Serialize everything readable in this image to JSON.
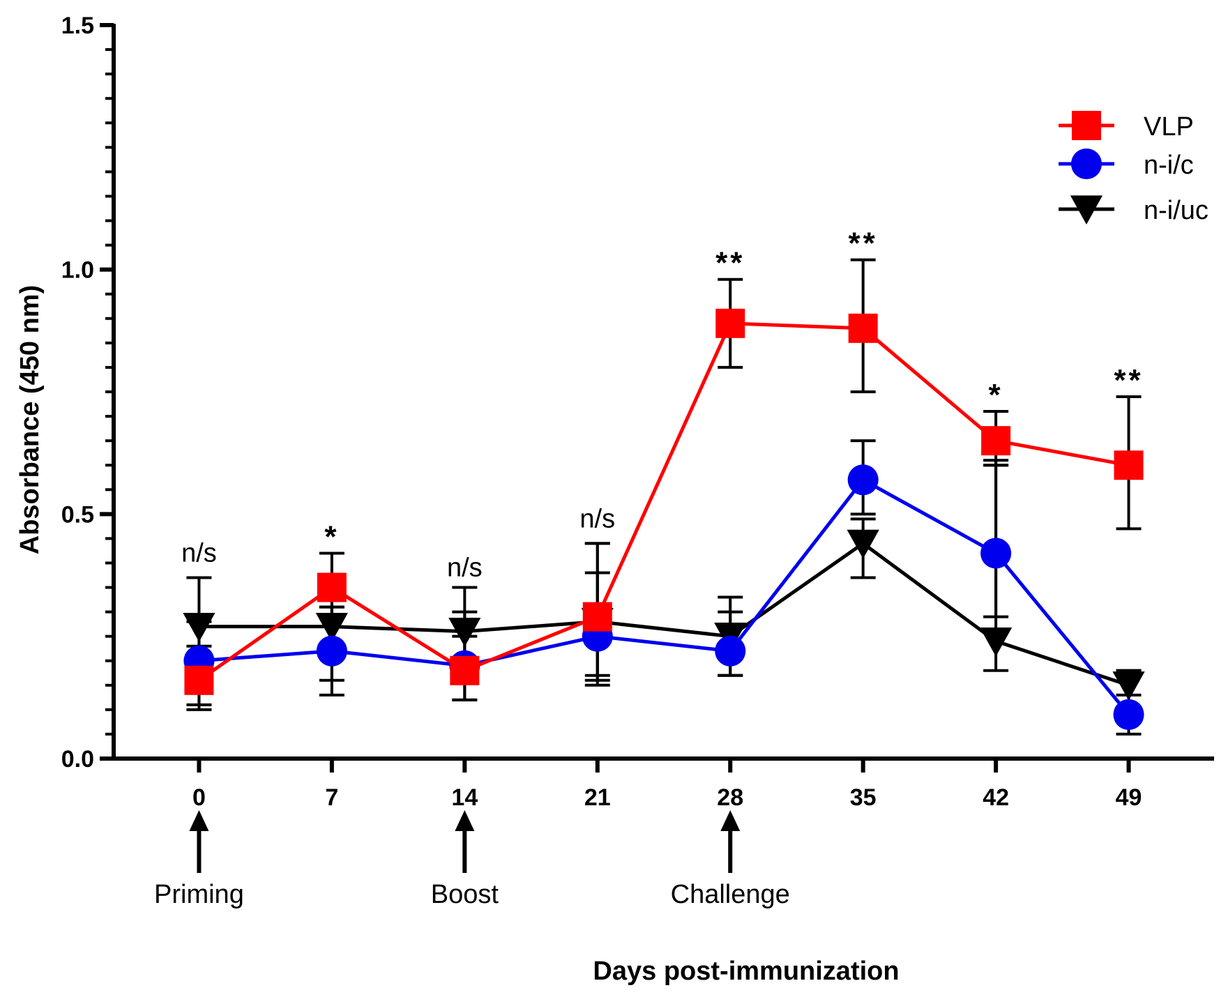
{
  "chart_data": {
    "type": "line",
    "title": "",
    "xlabel": "Days post-immunization",
    "ylabel": "Absorbance (450 nm)",
    "x": [
      0,
      7,
      14,
      21,
      28,
      35,
      42,
      49
    ],
    "x_tick_labels": [
      "0",
      "7",
      "14",
      "21",
      "28",
      "35",
      "42",
      "49"
    ],
    "xlim": [
      -4.5,
      53.5
    ],
    "ylim": [
      0,
      1.5
    ],
    "y_ticks": [
      0.0,
      0.5,
      1.0,
      1.5
    ],
    "y_tick_labels": [
      "0.0",
      "0.5",
      "1.0",
      "1.5"
    ],
    "grid": false,
    "legend_position": "top-right",
    "series": [
      {
        "name": "VLP",
        "color": "#ff0000",
        "marker": "square",
        "values": [
          0.16,
          0.35,
          0.18,
          0.29,
          0.89,
          0.88,
          0.65,
          0.6
        ],
        "error_upper": [
          0.28,
          0.42,
          0.3,
          0.44,
          0.98,
          1.02,
          0.71,
          0.74
        ],
        "error_lower": [
          0.1,
          0.13,
          0.12,
          0.15,
          0.8,
          0.75,
          0.6,
          0.47
        ]
      },
      {
        "name": "n-i/c",
        "color": "#0000ee",
        "marker": "circle",
        "values": [
          0.2,
          0.22,
          0.19,
          0.25,
          0.22,
          0.57,
          0.42,
          0.09
        ],
        "error_upper": [
          0.23,
          0.31,
          0.25,
          0.38,
          0.3,
          0.65,
          0.6,
          0.18
        ],
        "error_lower": [
          0.11,
          0.16,
          0.12,
          0.17,
          0.17,
          0.5,
          0.29,
          0.05
        ]
      },
      {
        "name": "n-i/uc",
        "color": "#000000",
        "marker": "triangle-down",
        "values": [
          0.27,
          0.27,
          0.26,
          0.28,
          0.25,
          0.44,
          0.24,
          0.15
        ],
        "error_upper": [
          0.37,
          0.31,
          0.35,
          0.44,
          0.33,
          0.49,
          0.61,
          0.18
        ],
        "error_lower": [
          0.2,
          0.23,
          0.2,
          0.16,
          0.17,
          0.37,
          0.18,
          0.13
        ]
      }
    ],
    "significance_labels": [
      {
        "x": 0,
        "label": "n/s",
        "y": 0.42
      },
      {
        "x": 7,
        "label": "*",
        "y": 0.47
      },
      {
        "x": 14,
        "label": "n/s",
        "y": 0.39
      },
      {
        "x": 21,
        "label": "n/s",
        "y": 0.49
      },
      {
        "x": 28,
        "label": "**",
        "y": 1.03
      },
      {
        "x": 35,
        "label": "**",
        "y": 1.07
      },
      {
        "x": 42,
        "label": "*",
        "y": 0.76
      },
      {
        "x": 49,
        "label": "**",
        "y": 0.79
      }
    ],
    "events": [
      {
        "x": 0,
        "label": "Priming"
      },
      {
        "x": 14,
        "label": "Boost"
      },
      {
        "x": 28,
        "label": "Challenge"
      }
    ]
  }
}
